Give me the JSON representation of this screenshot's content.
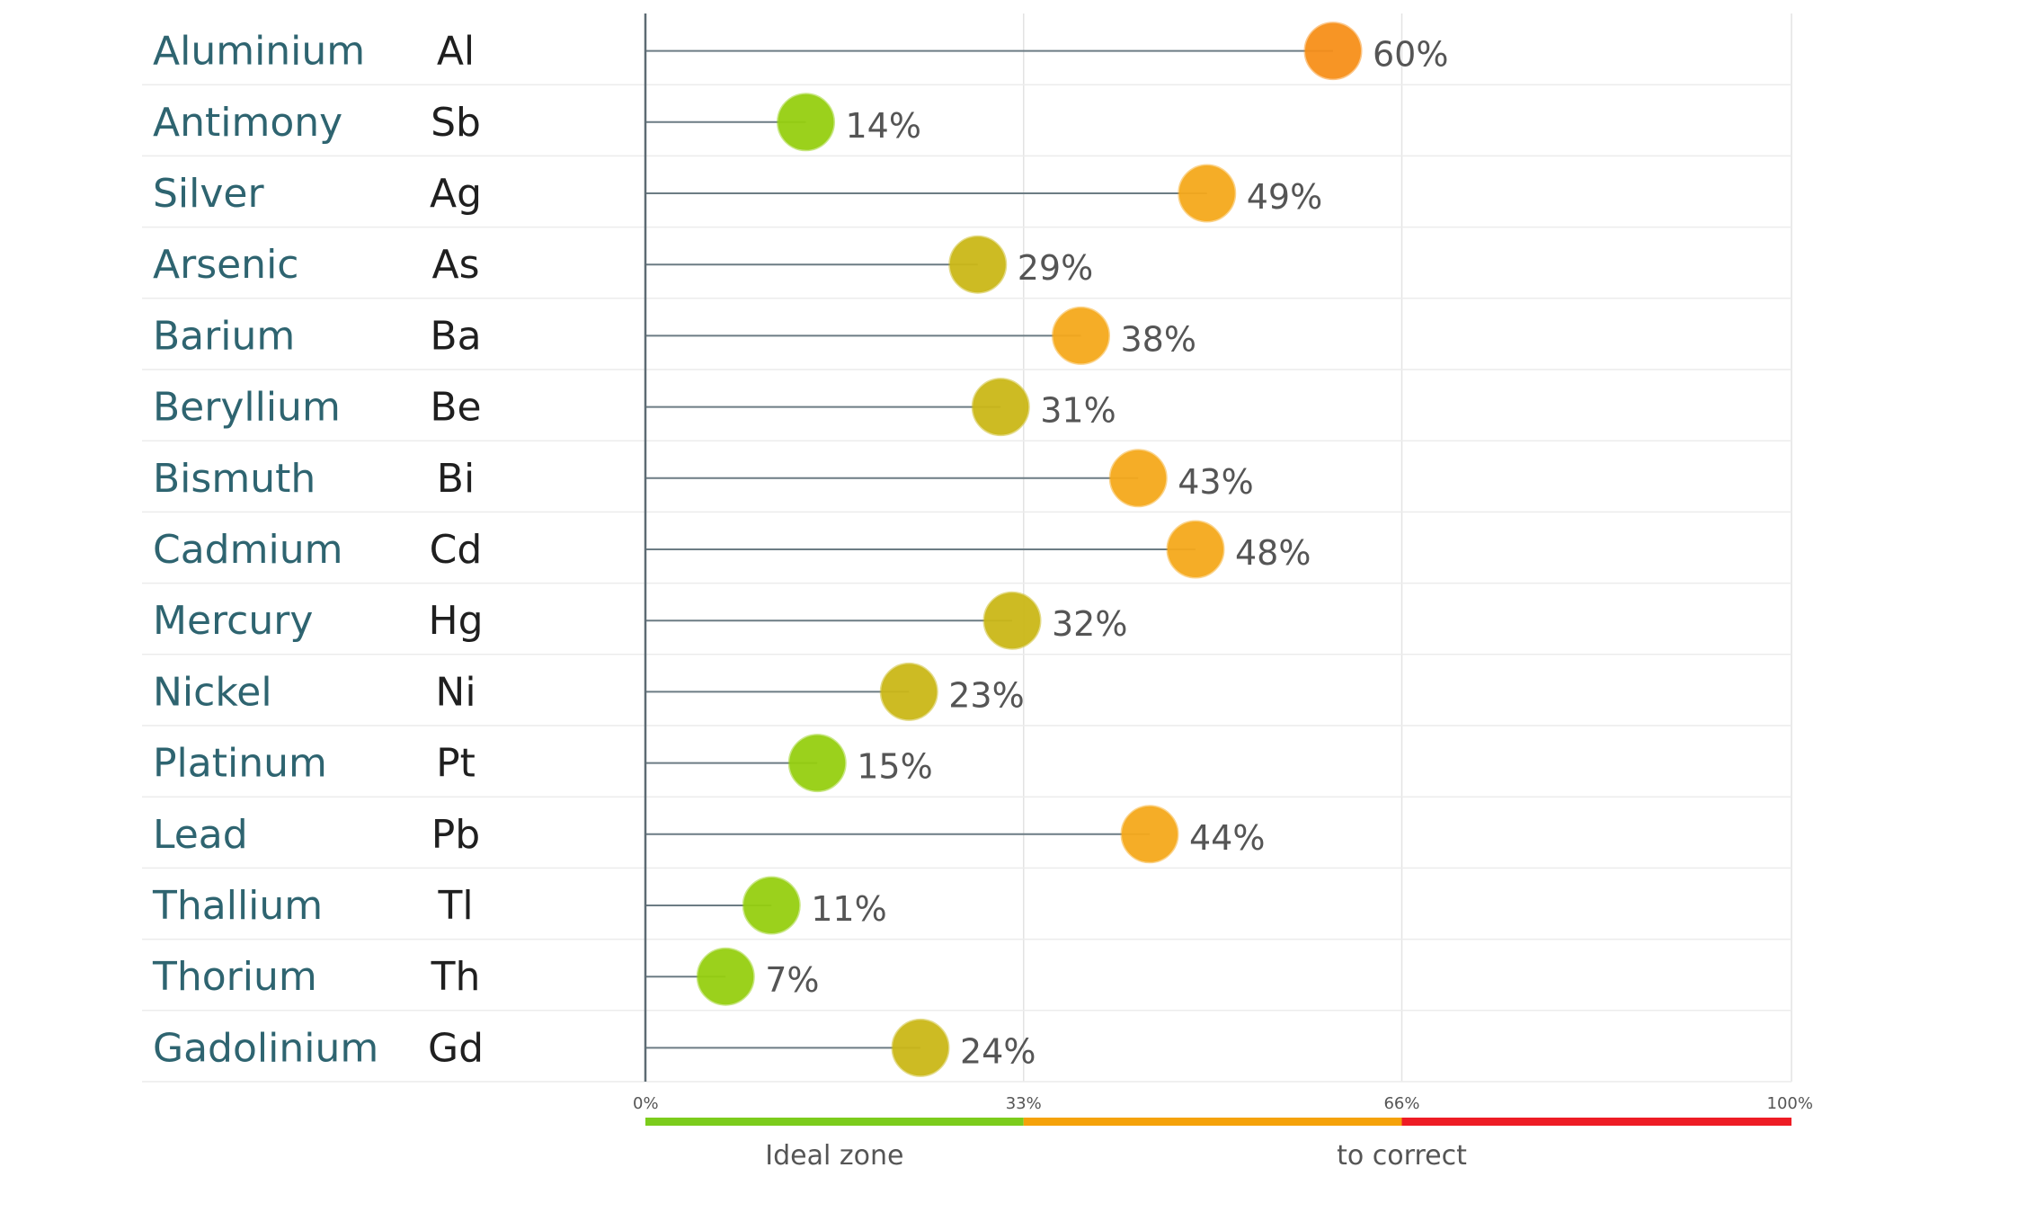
{
  "chart_data": {
    "type": "scatter",
    "categories": [
      "Aluminium",
      "Antimony",
      "Silver",
      "Arsenic",
      "Barium",
      "Beryllium",
      "Bismuth",
      "Cadmium",
      "Mercury",
      "Nickel",
      "Platinum",
      "Lead",
      "Thallium",
      "Thorium",
      "Gadolinium"
    ],
    "symbols": [
      "Al",
      "Sb",
      "Ag",
      "As",
      "Ba",
      "Be",
      "Bi",
      "Cd",
      "Hg",
      "Ni",
      "Pt",
      "Pb",
      "Tl",
      "Th",
      "Gd"
    ],
    "values": [
      60,
      14,
      49,
      29,
      38,
      31,
      43,
      48,
      32,
      23,
      15,
      44,
      11,
      7,
      24
    ],
    "value_labels": [
      "60%",
      "14%",
      "49%",
      "29%",
      "38%",
      "31%",
      "43%",
      "48%",
      "32%",
      "23%",
      "15%",
      "44%",
      "11%",
      "7%",
      "24%"
    ],
    "xlim": [
      0,
      100
    ],
    "ticks": [
      0,
      33,
      66,
      100
    ],
    "tick_labels": [
      "0%",
      "33%",
      "66%",
      "100%"
    ],
    "zones": [
      {
        "label": "Ideal zone",
        "from": 0,
        "to": 33,
        "color": "#7ccc1c"
      },
      {
        "label": "to correct",
        "from": 33,
        "to": 100,
        "color": "#f5a20a"
      }
    ],
    "zone_end_color": "#ee1c25",
    "marker_colors": {
      "low": "#96cf10",
      "mid": "#cbb818",
      "high": "#f5a91c",
      "top": "#f7901a"
    },
    "grid": true
  }
}
